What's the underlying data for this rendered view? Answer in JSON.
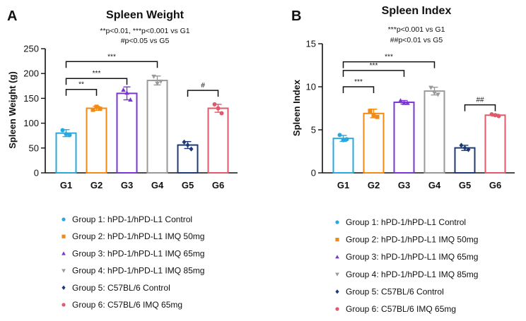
{
  "chart_data": [
    {
      "type": "bar",
      "panel": "A",
      "title": "Spleen Weight",
      "subtitle_lines": [
        "**p<0.01, ***p<0.001 vs G1",
        "#p<0.05 vs G5"
      ],
      "xlabel": "",
      "ylabel": "Spleen Weight (g)",
      "ylim": [
        0,
        250
      ],
      "yticks": [
        0,
        50,
        100,
        150,
        200,
        250
      ],
      "categories": [
        "G1",
        "G2",
        "G3",
        "G4",
        "G5",
        "G6"
      ],
      "values": [
        80,
        130,
        160,
        186,
        56,
        130
      ],
      "errors": [
        7,
        4,
        13,
        9,
        7,
        8
      ],
      "points": [
        [
          86,
          78,
          76
        ],
        [
          127,
          133,
          129
        ],
        [
          167,
          161,
          147
        ],
        [
          194,
          180,
          184
        ],
        [
          62,
          56,
          48
        ],
        [
          138,
          130,
          120
        ]
      ],
      "significance": [
        {
          "from": "G1",
          "to": "G2",
          "label": "**",
          "y": 168
        },
        {
          "from": "G1",
          "to": "G3",
          "label": "***",
          "y": 190
        },
        {
          "from": "G1",
          "to": "G4",
          "label": "***",
          "y": 224
        },
        {
          "from": "G5",
          "to": "G6",
          "label": "#",
          "y": 166
        }
      ]
    },
    {
      "type": "bar",
      "panel": "B",
      "title": "Spleen Index",
      "subtitle_lines": [
        "***p<0.001 vs G1",
        "##p<0.01 vs G5"
      ],
      "xlabel": "",
      "ylabel": "Spleen Index",
      "ylim": [
        0,
        15
      ],
      "yticks": [
        0,
        5,
        10,
        15
      ],
      "categories": [
        "G1",
        "G2",
        "G3",
        "G4",
        "G5",
        "G6"
      ],
      "values": [
        4.0,
        6.9,
        8.2,
        9.5,
        2.9,
        6.7
      ],
      "errors": [
        0.35,
        0.5,
        0.2,
        0.45,
        0.3,
        0.1
      ],
      "points": [
        [
          4.4,
          3.8,
          3.9
        ],
        [
          7.2,
          6.7,
          6.5
        ],
        [
          8.4,
          8.1,
          8.1
        ],
        [
          9.9,
          9.3,
          9.1
        ],
        [
          3.2,
          2.9,
          2.7
        ],
        [
          6.8,
          6.7,
          6.6
        ]
      ],
      "significance": [
        {
          "from": "G1",
          "to": "G2",
          "label": "***",
          "y": 10.0
        },
        {
          "from": "G1",
          "to": "G3",
          "label": "***",
          "y": 11.9
        },
        {
          "from": "G1",
          "to": "G4",
          "label": "***",
          "y": 12.9
        },
        {
          "from": "G5",
          "to": "G6",
          "label": "##",
          "y": 7.9
        }
      ]
    }
  ],
  "groups": [
    {
      "label": "Group 1: hPD-1/hPD-L1 Control",
      "color": "#29a8e0",
      "marker": "circle"
    },
    {
      "label": "Group 2: hPD-1/hPD-L1 IMQ 50mg",
      "color": "#f28a14",
      "marker": "square"
    },
    {
      "label": "Group 3: hPD-1/hPD-L1 IMQ 65mg",
      "color": "#7a35d6",
      "marker": "triangle-up"
    },
    {
      "label": "Group 4: hPD-1/hPD-L1 IMQ 85mg",
      "color": "#9a9a9a",
      "marker": "triangle-down"
    },
    {
      "label": "Group 5: C57BL/6 Control",
      "color": "#1e3a78",
      "marker": "diamond"
    },
    {
      "label": "Group 6: C57BL/6 IMQ 65mg",
      "color": "#e05a6c",
      "marker": "circle"
    }
  ]
}
